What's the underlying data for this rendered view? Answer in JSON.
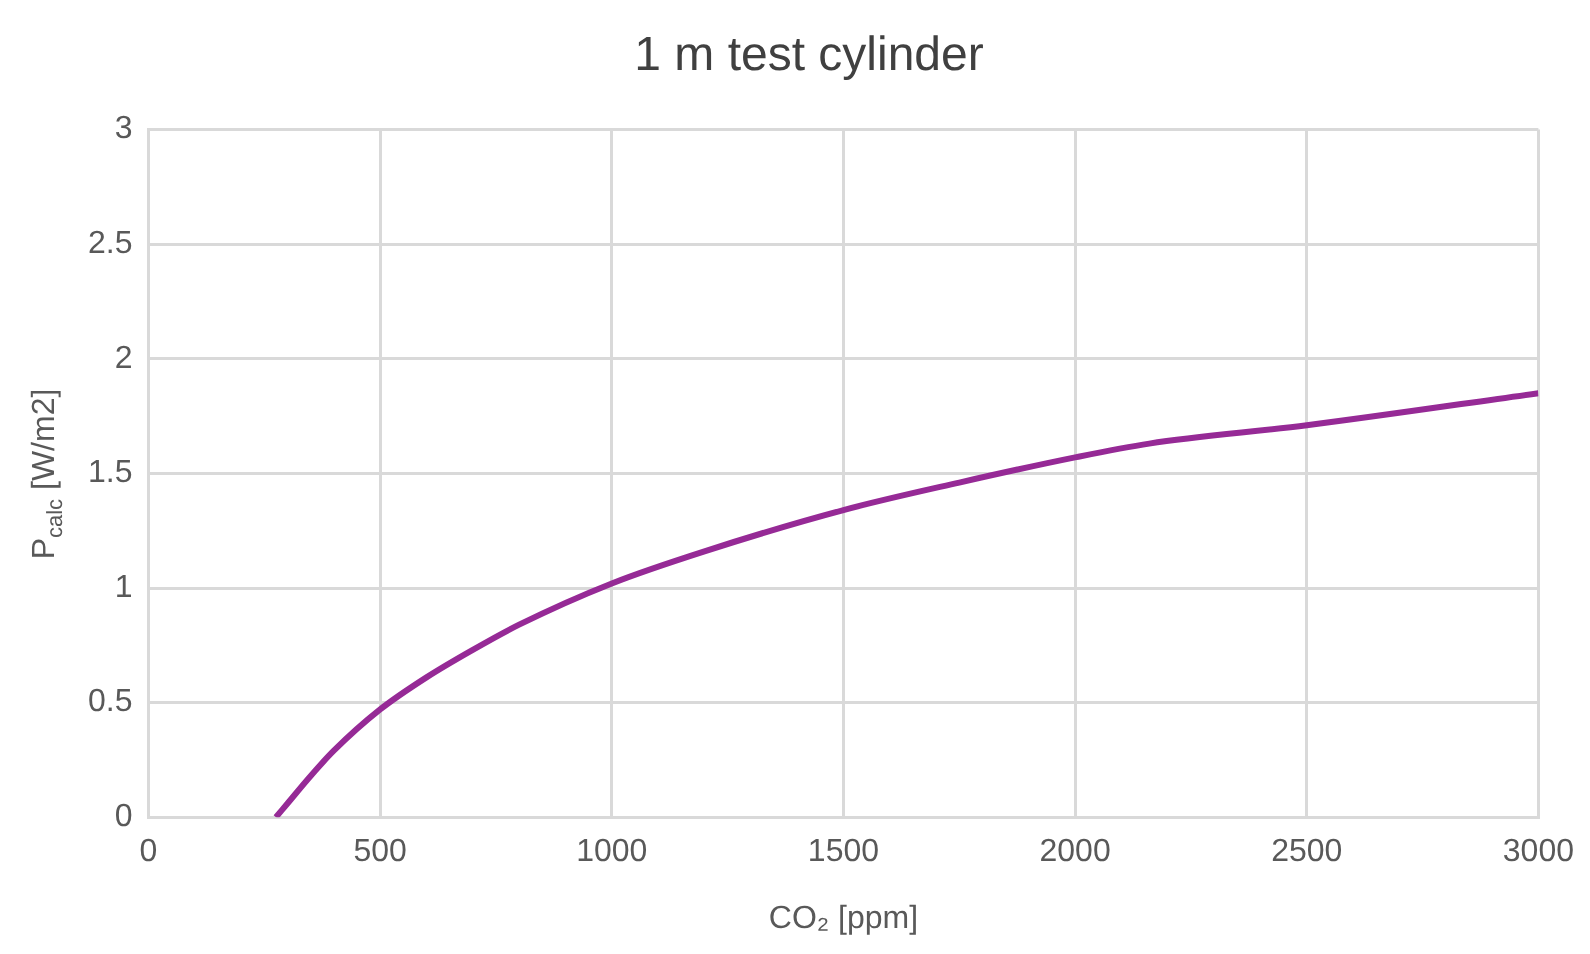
{
  "chart_data": {
    "type": "line",
    "title": "1 m test cylinder",
    "xlabel": "CO₂ [ppm]",
    "ylabel": "P$_{calc}$ [W/m2]",
    "x": [
      275,
      300,
      350,
      400,
      500,
      600,
      700,
      800,
      1000,
      1200,
      1500,
      1750,
      2000,
      2160,
      2500,
      3000
    ],
    "series": [
      {
        "color": "#962a96",
        "values": [
          0,
          0.06,
          0.18,
          0.29,
          0.47,
          0.61,
          0.73,
          0.84,
          1.02,
          1.16,
          1.34,
          1.46,
          1.57,
          1.63,
          1.71,
          1.85
        ]
      }
    ],
    "xlim": [
      0,
      3000
    ],
    "xticks": [
      0,
      500,
      1000,
      1500,
      2000,
      2500,
      3000
    ],
    "ylim": [
      0,
      3
    ],
    "yticks": [
      0,
      0.5,
      1,
      1.5,
      2,
      2.5,
      3
    ],
    "grid": true,
    "legend": false,
    "marker": "none",
    "line_style": "solid"
  }
}
